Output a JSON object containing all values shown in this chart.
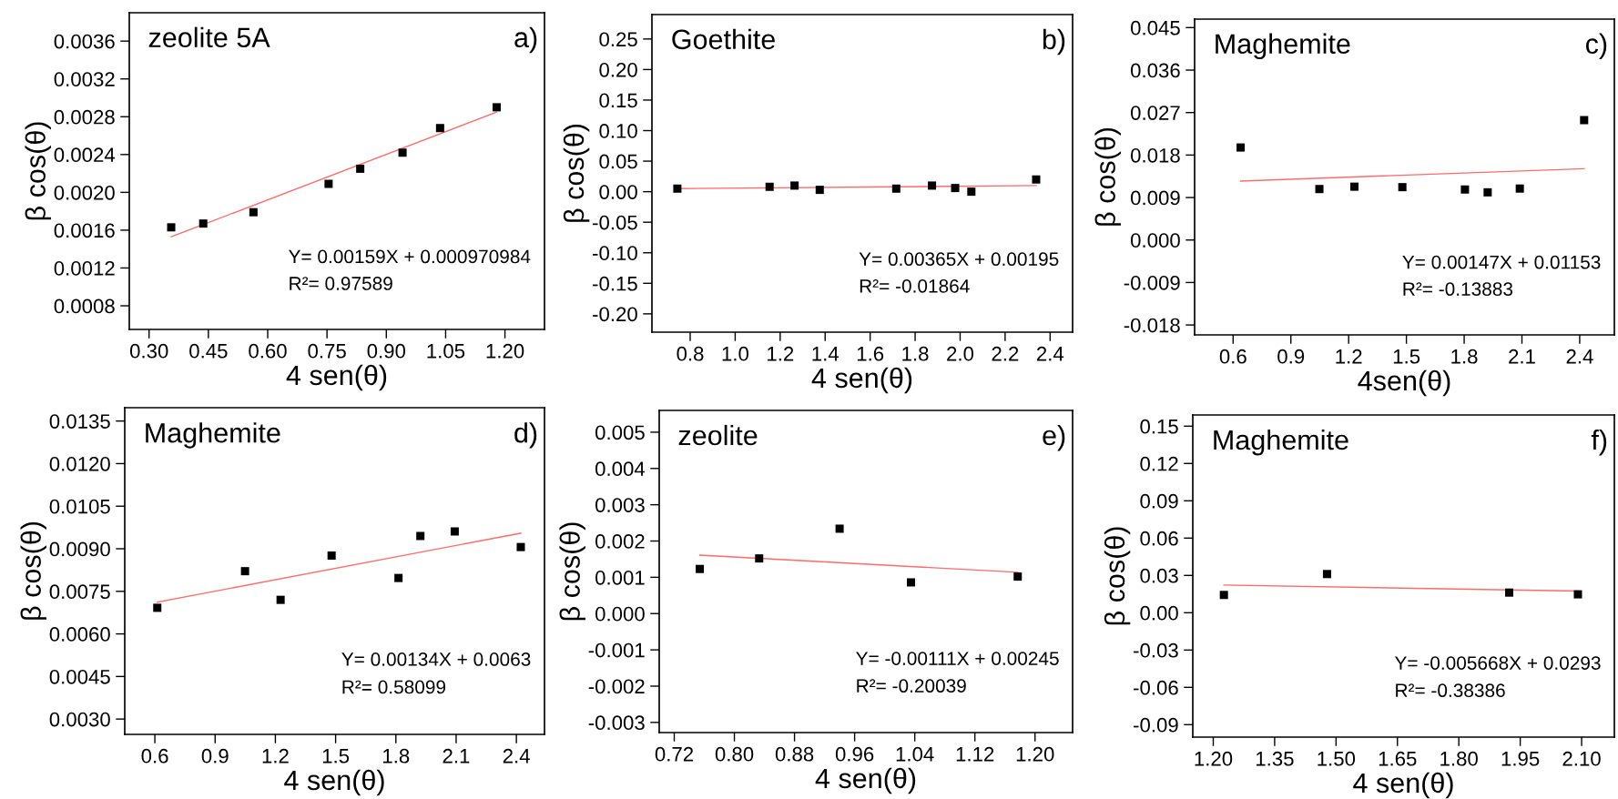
{
  "chart_data": [
    {
      "type": "scatter",
      "title": "zeolite 5A",
      "xlabel": "4 sen(θ)",
      "ylabel": "β cos(θ)",
      "annotations": [
        "a)",
        "Y= 0.00159X + 0.000970984",
        "R²= 0.97589"
      ],
      "xlim": [
        0.25,
        1.3
      ],
      "ylim": [
        0.00055,
        0.0039
      ],
      "xticks": [
        {
          "value": 0.3,
          "label": "0.30"
        },
        {
          "value": 0.45,
          "label": "0.45"
        },
        {
          "value": 0.6,
          "label": "0.60"
        },
        {
          "value": 0.75,
          "label": "0.75"
        },
        {
          "value": 0.9,
          "label": "0.90"
        },
        {
          "value": 1.05,
          "label": "1.05"
        },
        {
          "value": 1.2,
          "label": "1.20"
        }
      ],
      "yticks": [
        {
          "value": 0.0008,
          "label": "0.0008"
        },
        {
          "value": 0.0012,
          "label": "0.0012"
        },
        {
          "value": 0.0016,
          "label": "0.0016"
        },
        {
          "value": 0.002,
          "label": "0.0020"
        },
        {
          "value": 0.0024,
          "label": "0.0024"
        },
        {
          "value": 0.0028,
          "label": "0.0028"
        },
        {
          "value": 0.0032,
          "label": "0.0032"
        },
        {
          "value": 0.0036,
          "label": "0.0036"
        }
      ],
      "series": [
        {
          "marker": "square",
          "color": "#000000",
          "x": [
            0.356,
            0.437,
            0.564,
            0.754,
            0.834,
            0.941,
            1.036,
            1.179
          ],
          "values": [
            0.00163,
            0.00167,
            0.00179,
            0.00209,
            0.00225,
            0.00242,
            0.00268,
            0.0029
          ]
        },
        {
          "type": "line",
          "color": "#ff6b6b",
          "x": [
            0.356,
            1.179
          ],
          "values": [
            0.00153,
            0.00285
          ]
        }
      ]
    },
    {
      "type": "scatter",
      "title": "Goethite",
      "xlabel": "4 sen(θ)",
      "ylabel": "β cos(θ)",
      "annotations": [
        "b)",
        "Y= 0.00365X + 0.00195",
        "R²= -0.01864"
      ],
      "xlim": [
        0.63,
        2.5
      ],
      "ylim": [
        -0.23,
        0.29
      ],
      "xticks": [
        {
          "value": 0.8,
          "label": "0.8"
        },
        {
          "value": 1.0,
          "label": "1.0"
        },
        {
          "value": 1.2,
          "label": "1.2"
        },
        {
          "value": 1.4,
          "label": "1.4"
        },
        {
          "value": 1.6,
          "label": "1.6"
        },
        {
          "value": 1.8,
          "label": "1.8"
        },
        {
          "value": 2.0,
          "label": "2.0"
        },
        {
          "value": 2.2,
          "label": "2.2"
        },
        {
          "value": 2.4,
          "label": "2.4"
        }
      ],
      "yticks": [
        {
          "value": -0.2,
          "label": "-0.20"
        },
        {
          "value": -0.15,
          "label": "-0.15"
        },
        {
          "value": -0.1,
          "label": "-0.10"
        },
        {
          "value": -0.05,
          "label": "-0.05"
        },
        {
          "value": 0.0,
          "label": "0.00"
        },
        {
          "value": 0.05,
          "label": "0.05"
        },
        {
          "value": 0.1,
          "label": "0.10"
        },
        {
          "value": 0.15,
          "label": "0.15"
        },
        {
          "value": 0.2,
          "label": "0.20"
        },
        {
          "value": 0.25,
          "label": "0.25"
        }
      ],
      "series": [
        {
          "marker": "square",
          "color": "#000000",
          "x": [
            0.743,
            1.153,
            1.264,
            1.376,
            1.716,
            1.875,
            1.978,
            2.05,
            2.338
          ],
          "values": [
            0.005,
            0.008,
            0.01,
            0.003,
            0.005,
            0.01,
            0.006,
            0.0,
            0.02
          ]
        },
        {
          "type": "line",
          "color": "#ff6b6b",
          "x": [
            0.743,
            2.338
          ],
          "values": [
            0.005,
            0.01
          ]
        }
      ]
    },
    {
      "type": "scatter",
      "title": "Maghemite",
      "xlabel": "4sen(θ)",
      "ylabel": "β cos(θ)",
      "annotations": [
        "c)",
        "Y= 0.00147X + 0.01153",
        "R²= -0.13883"
      ],
      "xlim": [
        0.4,
        2.58
      ],
      "ylim": [
        -0.0201,
        0.0468
      ],
      "xticks": [
        {
          "value": 0.6,
          "label": "0.6"
        },
        {
          "value": 0.9,
          "label": "0.9"
        },
        {
          "value": 1.2,
          "label": "1.2"
        },
        {
          "value": 1.5,
          "label": "1.5"
        },
        {
          "value": 1.8,
          "label": "1.8"
        },
        {
          "value": 2.1,
          "label": "2.1"
        },
        {
          "value": 2.4,
          "label": "2.4"
        }
      ],
      "yticks": [
        {
          "value": -0.018,
          "label": "-0.018"
        },
        {
          "value": -0.009,
          "label": "-0.009"
        },
        {
          "value": 0.0,
          "label": "0.000"
        },
        {
          "value": 0.009,
          "label": "0.009"
        },
        {
          "value": 0.018,
          "label": "0.018"
        },
        {
          "value": 0.027,
          "label": "0.027"
        },
        {
          "value": 0.036,
          "label": "0.036"
        },
        {
          "value": 0.045,
          "label": "0.045"
        }
      ],
      "series": [
        {
          "marker": "square",
          "color": "#000000",
          "x": [
            0.639,
            1.048,
            1.23,
            1.479,
            1.804,
            1.922,
            2.089,
            2.423
          ],
          "values": [
            0.0196,
            0.0108,
            0.0113,
            0.0112,
            0.0107,
            0.0101,
            0.0109,
            0.0254
          ]
        },
        {
          "type": "line",
          "color": "#ff6b6b",
          "x": [
            0.639,
            2.423
          ],
          "values": [
            0.0125,
            0.0151
          ]
        }
      ]
    },
    {
      "type": "scatter",
      "title": "Maghemite",
      "xlabel": "4 sen(θ)",
      "ylabel": "β cos(θ)",
      "annotations": [
        "d)",
        "Y= 0.00134X + 0.0063",
        "R²= 0.58099"
      ],
      "xlim": [
        0.45,
        2.54
      ],
      "ylim": [
        0.00246,
        0.01397
      ],
      "xticks": [
        {
          "value": 0.6,
          "label": "0.6"
        },
        {
          "value": 0.9,
          "label": "0.9"
        },
        {
          "value": 1.2,
          "label": "1.2"
        },
        {
          "value": 1.5,
          "label": "1.5"
        },
        {
          "value": 1.8,
          "label": "1.8"
        },
        {
          "value": 2.1,
          "label": "2.1"
        },
        {
          "value": 2.4,
          "label": "2.4"
        }
      ],
      "yticks": [
        {
          "value": 0.003,
          "label": "0.0030"
        },
        {
          "value": 0.0045,
          "label": "0.0045"
        },
        {
          "value": 0.006,
          "label": "0.0060"
        },
        {
          "value": 0.0075,
          "label": "0.0075"
        },
        {
          "value": 0.009,
          "label": "0.0090"
        },
        {
          "value": 0.0105,
          "label": "0.0105"
        },
        {
          "value": 0.012,
          "label": "0.0120"
        },
        {
          "value": 0.0135,
          "label": "0.0135"
        }
      ],
      "series": [
        {
          "marker": "square",
          "color": "#000000",
          "x": [
            0.612,
            1.049,
            1.226,
            1.48,
            1.813,
            1.922,
            2.093,
            2.422
          ],
          "values": [
            0.00692,
            0.00821,
            0.0072,
            0.00876,
            0.00797,
            0.00945,
            0.00961,
            0.00906
          ]
        },
        {
          "type": "line",
          "color": "#ff6b6b",
          "x": [
            0.612,
            2.422
          ],
          "values": [
            0.00712,
            0.00955
          ]
        }
      ]
    },
    {
      "type": "scatter",
      "title": "zeolite",
      "xlabel": "4 sen(θ)",
      "ylabel": "β cos(θ)",
      "annotations": [
        "e)",
        "Y= -0.00111X + 0.00245",
        "R²= -0.20039"
      ],
      "xlim": [
        0.7,
        1.25
      ],
      "ylim": [
        -0.00328,
        0.0056
      ],
      "xticks": [
        {
          "value": 0.72,
          "label": "0.72"
        },
        {
          "value": 0.8,
          "label": "0.80"
        },
        {
          "value": 0.88,
          "label": "0.88"
        },
        {
          "value": 0.96,
          "label": "0.96"
        },
        {
          "value": 1.04,
          "label": "1.04"
        },
        {
          "value": 1.12,
          "label": "1.12"
        },
        {
          "value": 1.2,
          "label": "1.20"
        }
      ],
      "yticks": [
        {
          "value": -0.003,
          "label": "-0.003"
        },
        {
          "value": -0.002,
          "label": "-0.002"
        },
        {
          "value": -0.001,
          "label": "-0.001"
        },
        {
          "value": 0.0,
          "label": "0.000"
        },
        {
          "value": 0.001,
          "label": "0.001"
        },
        {
          "value": 0.002,
          "label": "0.002"
        },
        {
          "value": 0.003,
          "label": "0.003"
        },
        {
          "value": 0.004,
          "label": "0.004"
        },
        {
          "value": 0.005,
          "label": "0.005"
        }
      ],
      "series": [
        {
          "marker": "square",
          "color": "#000000",
          "x": [
            0.754,
            0.833,
            0.94,
            1.035,
            1.177
          ],
          "values": [
            0.00123,
            0.00152,
            0.00234,
            0.00086,
            0.00102
          ]
        },
        {
          "type": "line",
          "color": "#ff6b6b",
          "x": [
            0.754,
            1.177
          ],
          "values": [
            0.00161,
            0.00114
          ]
        }
      ]
    },
    {
      "type": "scatter",
      "title": "Maghemite",
      "xlabel": "4 sen(θ)",
      "ylabel": "β cos(θ)",
      "annotations": [
        "f)",
        "Y= -0.005668X + 0.0293",
        "R²= -0.38386"
      ],
      "xlim": [
        1.15,
        2.18
      ],
      "ylim": [
        -0.1,
        0.159
      ],
      "xticks": [
        {
          "value": 1.2,
          "label": "1.20"
        },
        {
          "value": 1.35,
          "label": "1.35"
        },
        {
          "value": 1.5,
          "label": "1.50"
        },
        {
          "value": 1.65,
          "label": "1.65"
        },
        {
          "value": 1.8,
          "label": "1.80"
        },
        {
          "value": 1.95,
          "label": "1.95"
        },
        {
          "value": 2.1,
          "label": "2.10"
        }
      ],
      "yticks": [
        {
          "value": -0.09,
          "label": "-0.09"
        },
        {
          "value": -0.06,
          "label": "-0.06"
        },
        {
          "value": -0.03,
          "label": "-0.03"
        },
        {
          "value": 0.0,
          "label": "0.00"
        },
        {
          "value": 0.03,
          "label": "0.03"
        },
        {
          "value": 0.06,
          "label": "0.06"
        },
        {
          "value": 0.09,
          "label": "0.09"
        },
        {
          "value": 0.12,
          "label": "0.12"
        },
        {
          "value": 0.15,
          "label": "0.15"
        }
      ],
      "series": [
        {
          "marker": "square",
          "color": "#000000",
          "x": [
            1.226,
            1.478,
            1.923,
            2.091
          ],
          "values": [
            0.0143,
            0.0311,
            0.0162,
            0.0148
          ]
        },
        {
          "type": "line",
          "color": "#ff6b6b",
          "x": [
            1.226,
            2.091
          ],
          "values": [
            0.0223,
            0.0174
          ]
        }
      ]
    }
  ]
}
